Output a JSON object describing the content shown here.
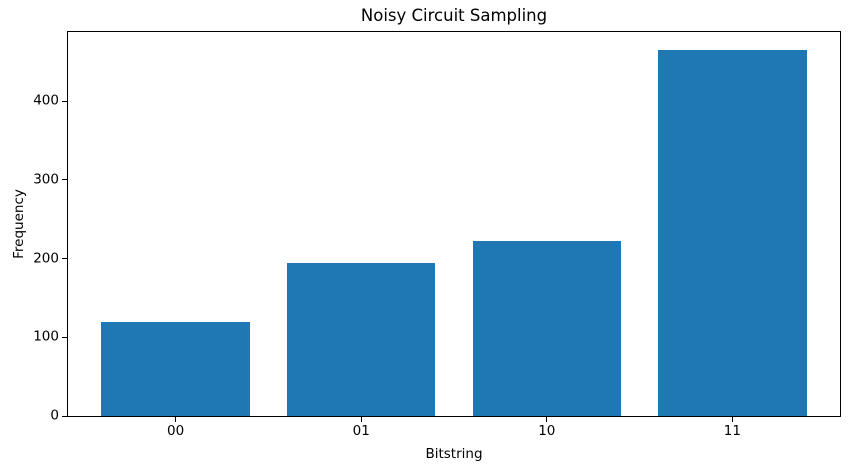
{
  "chart_data": {
    "type": "bar",
    "title": "Noisy Circuit Sampling",
    "xlabel": "Bitstring",
    "ylabel": "Frequency",
    "categories": [
      "00",
      "01",
      "10",
      "11"
    ],
    "values": [
      120,
      195,
      222,
      465
    ],
    "yticks": [
      0,
      100,
      200,
      300,
      400
    ],
    "ylim": [
      0,
      488
    ],
    "xlim": [
      -0.58,
      3.58
    ],
    "bar_width": 0.8,
    "bar_color": "#1f77b4",
    "spine_color": "#000000",
    "text_color": "#000000",
    "background": "#ffffff",
    "grid": false,
    "legend": "none"
  }
}
